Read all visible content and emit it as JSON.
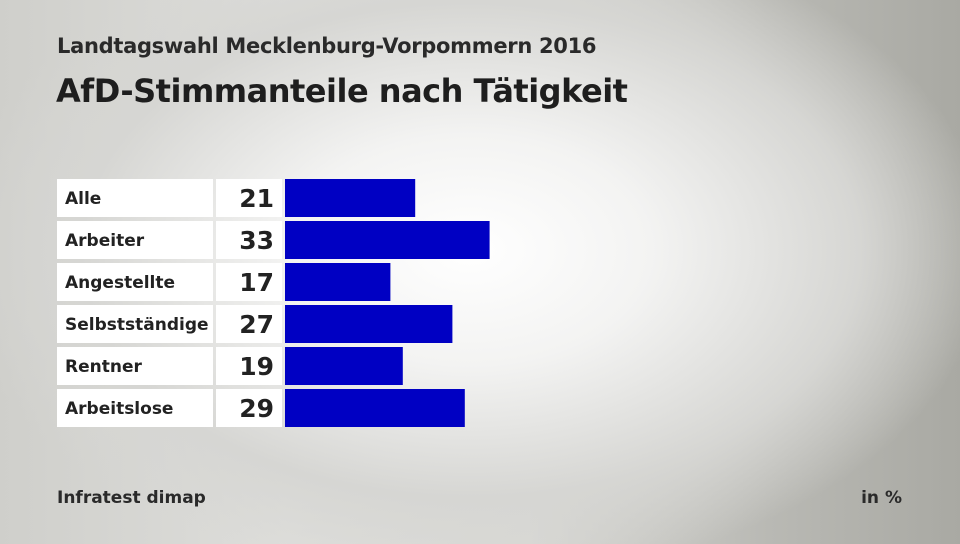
{
  "header": {
    "subtitle": "Landtagswahl Mecklenburg-Vorpommern 2016",
    "title": "AfD-Stimmanteile nach Tätigkeit"
  },
  "footer": {
    "source": "Infratest dimap",
    "unit": "in %"
  },
  "colors": {
    "bar": "#0000c3",
    "label_box": "#ffffff"
  },
  "chart_data": {
    "type": "bar",
    "orientation": "horizontal",
    "categories": [
      "Alle",
      "Arbeiter",
      "Angestellte",
      "Selbstständige",
      "Rentner",
      "Arbeitslose"
    ],
    "values": [
      21,
      33,
      17,
      27,
      19,
      29
    ],
    "title": "AfD-Stimmanteile nach Tätigkeit",
    "subtitle": "Landtagswahl Mecklenburg-Vorpommern 2016",
    "unit": "in %",
    "grid": false,
    "legend": "none"
  }
}
